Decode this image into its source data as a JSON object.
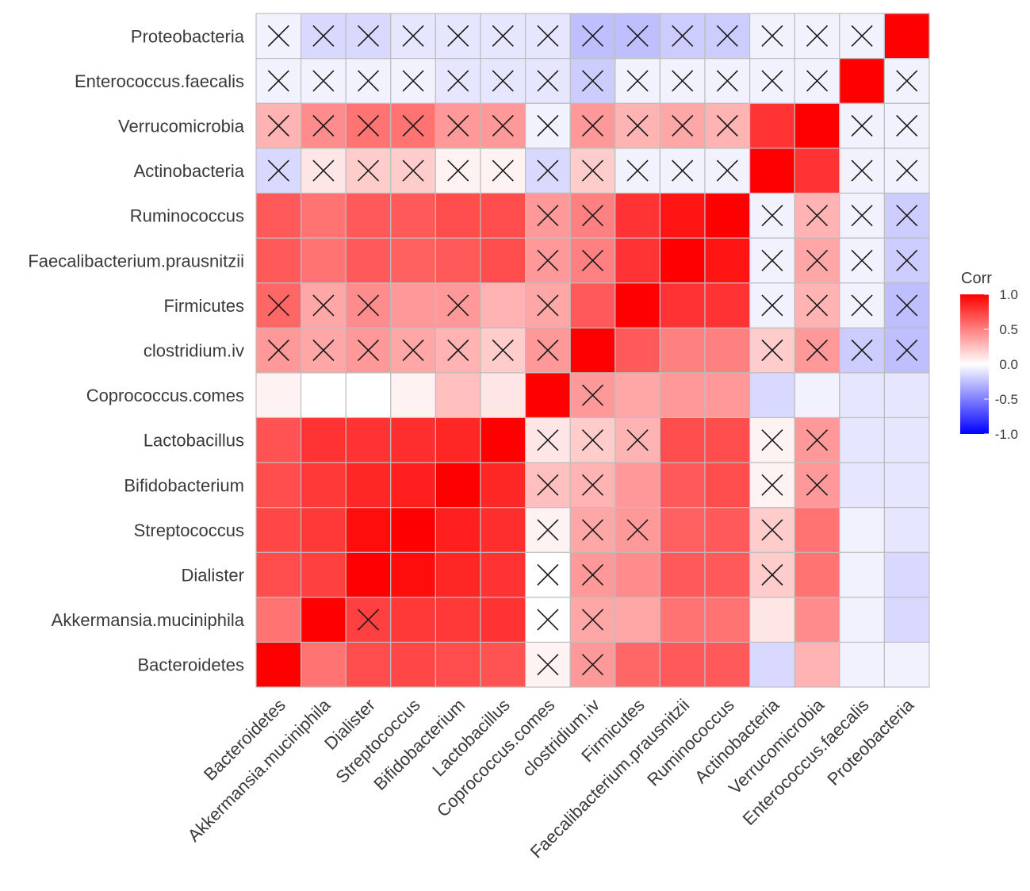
{
  "chart_data": {
    "type": "heatmap",
    "title": "",
    "xlabel": "",
    "ylabel": "",
    "variables": [
      "Bacteroidetes",
      "Akkermansia.muciniphila",
      "Dialister",
      "Streptococcus",
      "Bifidobacterium",
      "Lactobacillus",
      "Coprococcus.comes",
      "clostridium.iv",
      "Firmicutes",
      "Faecalibacterium.prausnitzii",
      "Ruminococcus",
      "Actinobacteria",
      "Verrucomicrobia",
      "Enterococcus.faecalis",
      "Proteobacteria"
    ],
    "matrix": [
      [
        1.0,
        0.55,
        0.7,
        0.72,
        0.7,
        0.68,
        0.05,
        0.4,
        0.6,
        0.65,
        0.65,
        -0.15,
        0.3,
        -0.05,
        -0.05
      ],
      [
        0.55,
        1.0,
        0.75,
        0.78,
        0.78,
        0.8,
        0.0,
        0.35,
        0.35,
        0.55,
        0.55,
        0.1,
        0.45,
        -0.05,
        -0.15
      ],
      [
        0.7,
        0.75,
        1.0,
        0.95,
        0.85,
        0.8,
        0.0,
        0.4,
        0.45,
        0.65,
        0.65,
        0.2,
        0.55,
        -0.05,
        -0.15
      ],
      [
        0.72,
        0.78,
        0.95,
        1.0,
        0.88,
        0.82,
        0.05,
        0.35,
        0.4,
        0.62,
        0.65,
        0.2,
        0.55,
        -0.05,
        -0.1
      ],
      [
        0.7,
        0.78,
        0.85,
        0.88,
        1.0,
        0.85,
        0.25,
        0.3,
        0.4,
        0.65,
        0.7,
        0.05,
        0.4,
        -0.1,
        -0.1
      ],
      [
        0.68,
        0.8,
        0.8,
        0.82,
        0.85,
        1.0,
        0.1,
        0.2,
        0.3,
        0.7,
        0.7,
        0.05,
        0.4,
        -0.1,
        -0.1
      ],
      [
        0.05,
        0.0,
        0.0,
        0.05,
        0.25,
        0.1,
        1.0,
        0.4,
        0.35,
        0.4,
        0.4,
        -0.15,
        -0.05,
        -0.1,
        -0.1
      ],
      [
        0.4,
        0.35,
        0.4,
        0.35,
        0.3,
        0.2,
        0.4,
        1.0,
        0.65,
        0.5,
        0.5,
        0.2,
        0.4,
        -0.2,
        -0.25
      ],
      [
        0.6,
        0.35,
        0.45,
        0.4,
        0.4,
        0.3,
        0.35,
        0.65,
        1.0,
        0.8,
        0.8,
        -0.05,
        0.3,
        -0.05,
        -0.25
      ],
      [
        0.65,
        0.55,
        0.65,
        0.62,
        0.65,
        0.7,
        0.4,
        0.5,
        0.8,
        1.0,
        0.92,
        -0.05,
        0.35,
        -0.05,
        -0.2
      ],
      [
        0.65,
        0.55,
        0.65,
        0.65,
        0.7,
        0.7,
        0.4,
        0.5,
        0.8,
        0.92,
        1.0,
        -0.05,
        0.3,
        -0.05,
        -0.2
      ],
      [
        -0.15,
        0.1,
        0.2,
        0.2,
        0.05,
        0.05,
        -0.15,
        0.2,
        -0.05,
        -0.05,
        -0.05,
        1.0,
        0.8,
        -0.05,
        -0.05
      ],
      [
        0.3,
        0.45,
        0.55,
        0.55,
        0.4,
        0.4,
        -0.05,
        0.4,
        0.3,
        0.35,
        0.3,
        0.8,
        1.0,
        -0.05,
        -0.05
      ],
      [
        -0.05,
        -0.05,
        -0.05,
        -0.05,
        -0.1,
        -0.1,
        -0.1,
        -0.2,
        -0.05,
        -0.05,
        -0.05,
        -0.05,
        -0.05,
        1.0,
        -0.05
      ],
      [
        -0.05,
        -0.15,
        -0.15,
        -0.1,
        -0.1,
        -0.1,
        -0.1,
        -0.25,
        -0.25,
        -0.2,
        -0.2,
        -0.05,
        -0.05,
        -0.05,
        1.0
      ]
    ],
    "nonsignificant": [
      [
        6,
        7
      ],
      [
        2,
        6,
        7
      ],
      [
        6,
        7,
        11
      ],
      [
        6,
        7,
        8,
        11
      ],
      [
        6,
        7,
        11,
        12
      ],
      [
        6,
        7,
        8,
        11,
        12
      ],
      [
        7
      ],
      [
        0,
        1,
        2,
        3,
        4,
        5,
        6,
        11,
        12,
        13,
        14
      ],
      [
        0,
        1,
        2,
        4,
        6,
        11,
        12,
        13,
        14
      ],
      [
        6,
        7,
        11,
        12,
        13,
        14
      ],
      [
        6,
        7,
        11,
        12,
        13,
        14
      ],
      [
        0,
        1,
        2,
        3,
        4,
        5,
        6,
        7,
        8,
        9,
        10,
        13,
        14
      ],
      [
        0,
        1,
        2,
        3,
        4,
        5,
        6,
        7,
        8,
        9,
        10,
        13,
        14
      ],
      [
        0,
        1,
        2,
        3,
        4,
        5,
        6,
        7,
        8,
        9,
        10,
        11,
        12,
        14
      ],
      [
        0,
        1,
        2,
        3,
        4,
        5,
        6,
        7,
        8,
        9,
        10,
        11,
        12,
        13
      ]
    ],
    "legend": {
      "title": "Corr",
      "ticks": [
        1.0,
        0.5,
        0.0,
        -0.5,
        -1.0
      ],
      "tick_labels": [
        "1.0",
        "0.5",
        "0.0",
        "-0.5",
        "-1.0"
      ],
      "position": "right"
    },
    "colors": {
      "low": "#0000ff",
      "mid": "#ffffff",
      "high": "#ff0000",
      "cell_border": "#bdbdbd",
      "cross": "#1a1a1a",
      "label": "#3a3a3a"
    },
    "scale_range": [
      -1,
      1
    ],
    "nonsignificant_marker": "×"
  }
}
